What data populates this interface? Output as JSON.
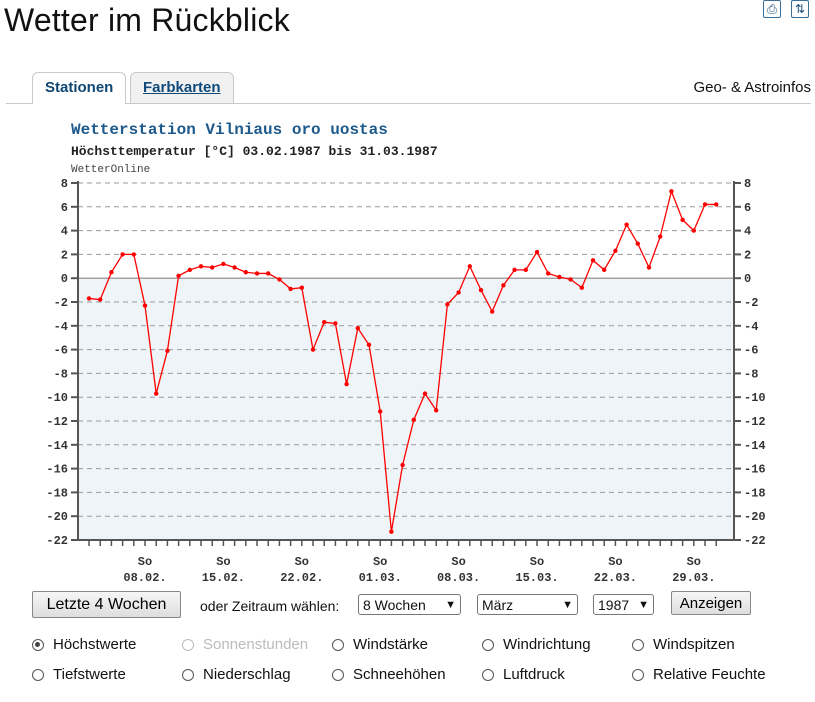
{
  "page": {
    "title": "Wetter im Rückblick",
    "icons": [
      "print-icon",
      "swap-icon"
    ]
  },
  "tabs": [
    {
      "label": "Stationen",
      "active": true
    },
    {
      "label": "Farbkarten",
      "active": false
    }
  ],
  "geo_link": "Geo- & Astroinfos",
  "chart_data": {
    "type": "line",
    "title": "Wetterstation Vilniaus oro uostas",
    "subtitle": "Höchsttemperatur [°C] 03.02.1987 bis 31.03.1987",
    "source": "WetterOnline",
    "ylim": [
      -22,
      8
    ],
    "yticks": [
      8,
      6,
      4,
      2,
      0,
      -2,
      -4,
      -6,
      -8,
      -10,
      -12,
      -14,
      -16,
      -18,
      -20,
      -22
    ],
    "grid": true,
    "x": [
      "03.02.",
      "04.02.",
      "05.02.",
      "06.02.",
      "07.02.",
      "08.02.",
      "09.02.",
      "10.02.",
      "11.02.",
      "12.02.",
      "13.02.",
      "14.02.",
      "15.02.",
      "16.02.",
      "17.02.",
      "18.02.",
      "19.02.",
      "20.02.",
      "21.02.",
      "22.02.",
      "23.02.",
      "24.02.",
      "25.02.",
      "26.02.",
      "27.02.",
      "28.02.",
      "01.03.",
      "02.03.",
      "03.03.",
      "04.03.",
      "05.03.",
      "06.03.",
      "07.03.",
      "08.03.",
      "09.03.",
      "10.03.",
      "11.03.",
      "12.03.",
      "13.03.",
      "14.03.",
      "15.03.",
      "16.03.",
      "17.03.",
      "18.03.",
      "19.03.",
      "20.03.",
      "21.03.",
      "22.03.",
      "23.03.",
      "24.03.",
      "25.03.",
      "26.03.",
      "27.03.",
      "28.03.",
      "29.03.",
      "30.03.",
      "31.03."
    ],
    "x_tick_labels": [
      {
        "index": 5,
        "day": "So",
        "date": "08.02."
      },
      {
        "index": 12,
        "day": "So",
        "date": "15.02."
      },
      {
        "index": 19,
        "day": "So",
        "date": "22.02."
      },
      {
        "index": 26,
        "day": "So",
        "date": "01.03."
      },
      {
        "index": 33,
        "day": "So",
        "date": "08.03."
      },
      {
        "index": 40,
        "day": "So",
        "date": "15.03."
      },
      {
        "index": 47,
        "day": "So",
        "date": "22.03."
      },
      {
        "index": 54,
        "day": "So",
        "date": "29.03."
      }
    ],
    "series": [
      {
        "color": "#ff0000",
        "values": [
          -1.7,
          -1.8,
          0.5,
          2.0,
          2.0,
          -2.3,
          -9.7,
          -6.1,
          0.2,
          0.7,
          1.0,
          0.9,
          1.2,
          0.9,
          0.5,
          0.4,
          0.4,
          -0.1,
          -0.9,
          -0.8,
          -6.0,
          -3.7,
          -3.8,
          -8.9,
          -4.2,
          -5.6,
          -11.2,
          -21.3,
          -15.7,
          -11.9,
          -9.7,
          -11.1,
          -2.2,
          -1.2,
          1.0,
          -1.0,
          -2.8,
          -0.6,
          0.7,
          0.7,
          2.2,
          0.4,
          0.1,
          -0.1,
          -0.8,
          1.5,
          0.7,
          2.3,
          4.5,
          2.9,
          0.9,
          3.5,
          7.3,
          4.9,
          4.0,
          6.2,
          6.2
        ]
      }
    ]
  },
  "controls": {
    "last4_label": "Letzte 4 Wochen",
    "period_label": "oder Zeitraum wählen:",
    "weeks_value": "8 Wochen",
    "month_value": "März",
    "year_value": "1987",
    "show_label": "Anzeigen"
  },
  "radios": [
    {
      "label": "Höchstwerte",
      "checked": true,
      "disabled": false
    },
    {
      "label": "Sonnenstunden",
      "checked": false,
      "disabled": true
    },
    {
      "label": "Windstärke",
      "checked": false,
      "disabled": false
    },
    {
      "label": "Windrichtung",
      "checked": false,
      "disabled": false
    },
    {
      "label": "Windspitzen",
      "checked": false,
      "disabled": false
    },
    {
      "label": "Tiefstwerte",
      "checked": false,
      "disabled": false
    },
    {
      "label": "Niederschlag",
      "checked": false,
      "disabled": false
    },
    {
      "label": "Schneehöhen",
      "checked": false,
      "disabled": false
    },
    {
      "label": "Luftdruck",
      "checked": false,
      "disabled": false
    },
    {
      "label": "Relative Feuchte",
      "checked": false,
      "disabled": false
    }
  ],
  "colors": {
    "accent_blue": "#0f4674",
    "line_red": "#ff0000",
    "below_zero_fill": "#eef4f7"
  }
}
